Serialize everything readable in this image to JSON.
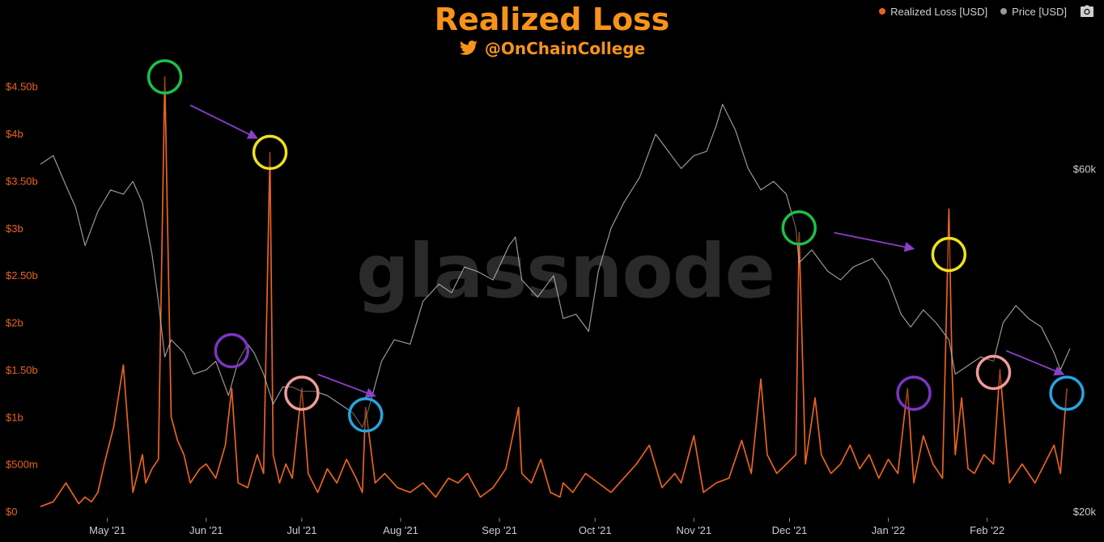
{
  "header": {
    "title": "Realized Loss",
    "handle": "@OnChainCollege",
    "watermark": "glassnode"
  },
  "legend": {
    "items": [
      {
        "label": "Realized Loss [USD]",
        "color": "#e8631f"
      },
      {
        "label": "Price [USD]",
        "color": "#9a9a9a"
      }
    ],
    "icon": "camera-icon"
  },
  "colors": {
    "loss": "#e8631f",
    "price": "#b3b3b3",
    "left_axis_text": "#e8631f",
    "right_axis_text": "#cccccc",
    "arrow": "#8a3fc9",
    "circle_green": "#1dbf4a",
    "circle_yellow": "#f0e020",
    "circle_purple": "#7b35c2",
    "circle_pink": "#f19a9a",
    "circle_blue": "#26a5e0"
  },
  "chart_data": {
    "type": "line",
    "title": "Realized Loss",
    "x_start": "2021-04-10",
    "x_end": "2022-02-27",
    "x_tick_labels": [
      "May '21",
      "Jun '21",
      "Jul '21",
      "Aug '21",
      "Sep '21",
      "Oct '21",
      "Nov '21",
      "Dec '21",
      "Jan '22",
      "Feb '22"
    ],
    "x_tick_dates": [
      "2021-05-01",
      "2021-06-01",
      "2021-07-01",
      "2021-08-01",
      "2021-09-01",
      "2021-10-01",
      "2021-11-01",
      "2021-12-01",
      "2022-01-01",
      "2022-02-01"
    ],
    "y_left": {
      "min": 0,
      "max": 4.9,
      "unit": "USD billions",
      "ticks": [
        0,
        0.5,
        1,
        1.5,
        2,
        2.5,
        3,
        3.5,
        4,
        4.5
      ],
      "tick_labels": [
        "$0",
        "$500m",
        "$1b",
        "$1.50b",
        "$2b",
        "$2.50b",
        "$3b",
        "$3.50b",
        "$4b",
        "$4.50b"
      ]
    },
    "y_right": {
      "min": 20000,
      "max": 74000,
      "unit": "USD",
      "ticks": [
        20000,
        60000
      ],
      "tick_labels": [
        "$20k",
        "$60k"
      ]
    },
    "series": [
      {
        "name": "Realized Loss [USD]",
        "axis": "left",
        "color": "#e8631f",
        "x": [
          "2021-04-10",
          "2021-04-14",
          "2021-04-18",
          "2021-04-22",
          "2021-04-24",
          "2021-04-26",
          "2021-04-28",
          "2021-04-30",
          "2021-05-03",
          "2021-05-06",
          "2021-05-09",
          "2021-05-12",
          "2021-05-13",
          "2021-05-15",
          "2021-05-17",
          "2021-05-19",
          "2021-05-21",
          "2021-05-23",
          "2021-05-25",
          "2021-05-27",
          "2021-05-30",
          "2021-06-01",
          "2021-06-04",
          "2021-06-07",
          "2021-06-09",
          "2021-06-11",
          "2021-06-14",
          "2021-06-17",
          "2021-06-19",
          "2021-06-21",
          "2021-06-22",
          "2021-06-24",
          "2021-06-26",
          "2021-06-28",
          "2021-07-01",
          "2021-07-03",
          "2021-07-06",
          "2021-07-09",
          "2021-07-12",
          "2021-07-15",
          "2021-07-18",
          "2021-07-20",
          "2021-07-21",
          "2021-07-24",
          "2021-07-27",
          "2021-07-31",
          "2021-08-04",
          "2021-08-08",
          "2021-08-12",
          "2021-08-16",
          "2021-08-19",
          "2021-08-22",
          "2021-08-26",
          "2021-08-30",
          "2021-09-03",
          "2021-09-07",
          "2021-09-08",
          "2021-09-11",
          "2021-09-14",
          "2021-09-17",
          "2021-09-20",
          "2021-09-21",
          "2021-09-24",
          "2021-09-28",
          "2021-10-02",
          "2021-10-06",
          "2021-10-10",
          "2021-10-14",
          "2021-10-18",
          "2021-10-22",
          "2021-10-26",
          "2021-10-28",
          "2021-11-01",
          "2021-11-04",
          "2021-11-08",
          "2021-11-12",
          "2021-11-16",
          "2021-11-19",
          "2021-11-22",
          "2021-11-24",
          "2021-11-27",
          "2021-11-30",
          "2021-12-03",
          "2021-12-04",
          "2021-12-06",
          "2021-12-09",
          "2021-12-11",
          "2021-12-14",
          "2021-12-17",
          "2021-12-20",
          "2021-12-23",
          "2021-12-26",
          "2021-12-29",
          "2022-01-01",
          "2022-01-04",
          "2022-01-07",
          "2022-01-09",
          "2022-01-12",
          "2022-01-15",
          "2022-01-18",
          "2022-01-20",
          "2022-01-21",
          "2022-01-22",
          "2022-01-24",
          "2022-01-26",
          "2022-01-28",
          "2022-01-31",
          "2022-02-03",
          "2022-02-05",
          "2022-02-08",
          "2022-02-12",
          "2022-02-16",
          "2022-02-19",
          "2022-02-22",
          "2022-02-24",
          "2022-02-26"
        ],
        "y": [
          0.05,
          0.1,
          0.3,
          0.08,
          0.15,
          0.1,
          0.2,
          0.5,
          0.9,
          1.55,
          0.2,
          0.6,
          0.3,
          0.45,
          0.55,
          4.6,
          1.0,
          0.75,
          0.6,
          0.3,
          0.45,
          0.5,
          0.35,
          0.7,
          1.3,
          0.3,
          0.25,
          0.6,
          0.4,
          3.8,
          0.6,
          0.3,
          0.5,
          0.35,
          1.3,
          0.4,
          0.2,
          0.45,
          0.3,
          0.55,
          0.35,
          0.2,
          1.1,
          0.3,
          0.4,
          0.25,
          0.2,
          0.3,
          0.15,
          0.35,
          0.3,
          0.4,
          0.15,
          0.25,
          0.45,
          1.1,
          0.4,
          0.3,
          0.55,
          0.2,
          0.15,
          0.3,
          0.2,
          0.4,
          0.3,
          0.2,
          0.35,
          0.5,
          0.7,
          0.25,
          0.4,
          0.3,
          0.8,
          0.2,
          0.3,
          0.35,
          0.75,
          0.4,
          1.4,
          0.6,
          0.4,
          0.5,
          0.6,
          2.95,
          0.5,
          1.2,
          0.6,
          0.4,
          0.5,
          0.7,
          0.45,
          0.6,
          0.35,
          0.55,
          0.4,
          1.3,
          0.3,
          0.8,
          0.5,
          0.35,
          3.2,
          1.5,
          0.6,
          1.2,
          0.45,
          0.4,
          0.6,
          0.5,
          1.5,
          0.3,
          0.5,
          0.3,
          0.5,
          0.7,
          0.4,
          1.3
        ]
      },
      {
        "name": "Price [USD]",
        "axis": "right",
        "color": "#b3b3b3",
        "x": [
          "2021-04-10",
          "2021-04-14",
          "2021-04-18",
          "2021-04-21",
          "2021-04-24",
          "2021-04-28",
          "2021-05-02",
          "2021-05-06",
          "2021-05-09",
          "2021-05-12",
          "2021-05-15",
          "2021-05-17",
          "2021-05-19",
          "2021-05-21",
          "2021-05-25",
          "2021-05-28",
          "2021-06-01",
          "2021-06-04",
          "2021-06-08",
          "2021-06-11",
          "2021-06-14",
          "2021-06-16",
          "2021-06-19",
          "2021-06-22",
          "2021-06-25",
          "2021-06-28",
          "2021-07-01",
          "2021-07-05",
          "2021-07-09",
          "2021-07-13",
          "2021-07-17",
          "2021-07-20",
          "2021-07-22",
          "2021-07-26",
          "2021-07-30",
          "2021-08-04",
          "2021-08-08",
          "2021-08-13",
          "2021-08-17",
          "2021-08-21",
          "2021-08-25",
          "2021-08-30",
          "2021-09-04",
          "2021-09-06",
          "2021-09-08",
          "2021-09-13",
          "2021-09-18",
          "2021-09-21",
          "2021-09-25",
          "2021-09-29",
          "2021-10-02",
          "2021-10-06",
          "2021-10-10",
          "2021-10-15",
          "2021-10-20",
          "2021-10-24",
          "2021-10-28",
          "2021-11-01",
          "2021-11-05",
          "2021-11-08",
          "2021-11-10",
          "2021-11-14",
          "2021-11-18",
          "2021-11-22",
          "2021-11-26",
          "2021-11-30",
          "2021-12-03",
          "2021-12-04",
          "2021-12-08",
          "2021-12-13",
          "2021-12-17",
          "2021-12-21",
          "2021-12-27",
          "2022-01-01",
          "2022-01-05",
          "2022-01-08",
          "2022-01-12",
          "2022-01-16",
          "2022-01-20",
          "2022-01-22",
          "2022-01-26",
          "2022-01-30",
          "2022-02-03",
          "2022-02-06",
          "2022-02-10",
          "2022-02-14",
          "2022-02-18",
          "2022-02-22",
          "2022-02-24",
          "2022-02-27"
        ],
        "y": [
          60500,
          61500,
          58000,
          55500,
          51000,
          55000,
          57500,
          57000,
          58500,
          56000,
          50000,
          44500,
          38000,
          40000,
          38500,
          36000,
          36500,
          37500,
          33500,
          37500,
          39500,
          38500,
          36000,
          32500,
          34500,
          34500,
          34000,
          34000,
          33500,
          32500,
          31500,
          29800,
          32000,
          37500,
          40000,
          39500,
          44500,
          46500,
          45500,
          48500,
          48000,
          47000,
          51000,
          52000,
          47000,
          45000,
          47500,
          42500,
          43000,
          41000,
          48000,
          53000,
          56000,
          59000,
          64000,
          62000,
          60000,
          61500,
          62000,
          65000,
          67500,
          64500,
          60000,
          57500,
          58500,
          57000,
          53000,
          49000,
          50500,
          48000,
          47000,
          48500,
          49500,
          47000,
          43000,
          41500,
          43500,
          42000,
          40000,
          36000,
          37000,
          38000,
          37500,
          42000,
          44000,
          42500,
          41500,
          38500,
          36500,
          39000
        ]
      }
    ],
    "annotations": {
      "circles": [
        {
          "date": "2021-05-19",
          "value": 4.6,
          "ring": "green"
        },
        {
          "date": "2021-06-21",
          "value": 3.8,
          "ring": "yellow"
        },
        {
          "date": "2021-06-09",
          "value": 1.7,
          "ring": "purple"
        },
        {
          "date": "2021-07-01",
          "value": 1.25,
          "ring": "pink"
        },
        {
          "date": "2021-07-21",
          "value": 1.02,
          "ring": "blue"
        },
        {
          "date": "2021-12-04",
          "value": 3.0,
          "ring": "green"
        },
        {
          "date": "2022-01-20",
          "value": 2.72,
          "ring": "yellow"
        },
        {
          "date": "2022-01-09",
          "value": 1.25,
          "ring": "purple"
        },
        {
          "date": "2022-02-03",
          "value": 1.47,
          "ring": "pink"
        },
        {
          "date": "2022-02-26",
          "value": 1.25,
          "ring": "blue"
        }
      ],
      "arrows": [
        {
          "from_date": "2021-05-27",
          "from_value": 4.3,
          "to_date": "2021-06-17",
          "to_value": 3.95
        },
        {
          "from_date": "2021-07-06",
          "from_value": 1.45,
          "to_date": "2021-07-24",
          "to_value": 1.22
        },
        {
          "from_date": "2021-12-15",
          "from_value": 2.95,
          "to_date": "2022-01-09",
          "to_value": 2.78
        },
        {
          "from_date": "2022-02-07",
          "from_value": 1.7,
          "to_date": "2022-02-25",
          "to_value": 1.45
        }
      ]
    },
    "grid": false,
    "legend_position": "top-right"
  }
}
